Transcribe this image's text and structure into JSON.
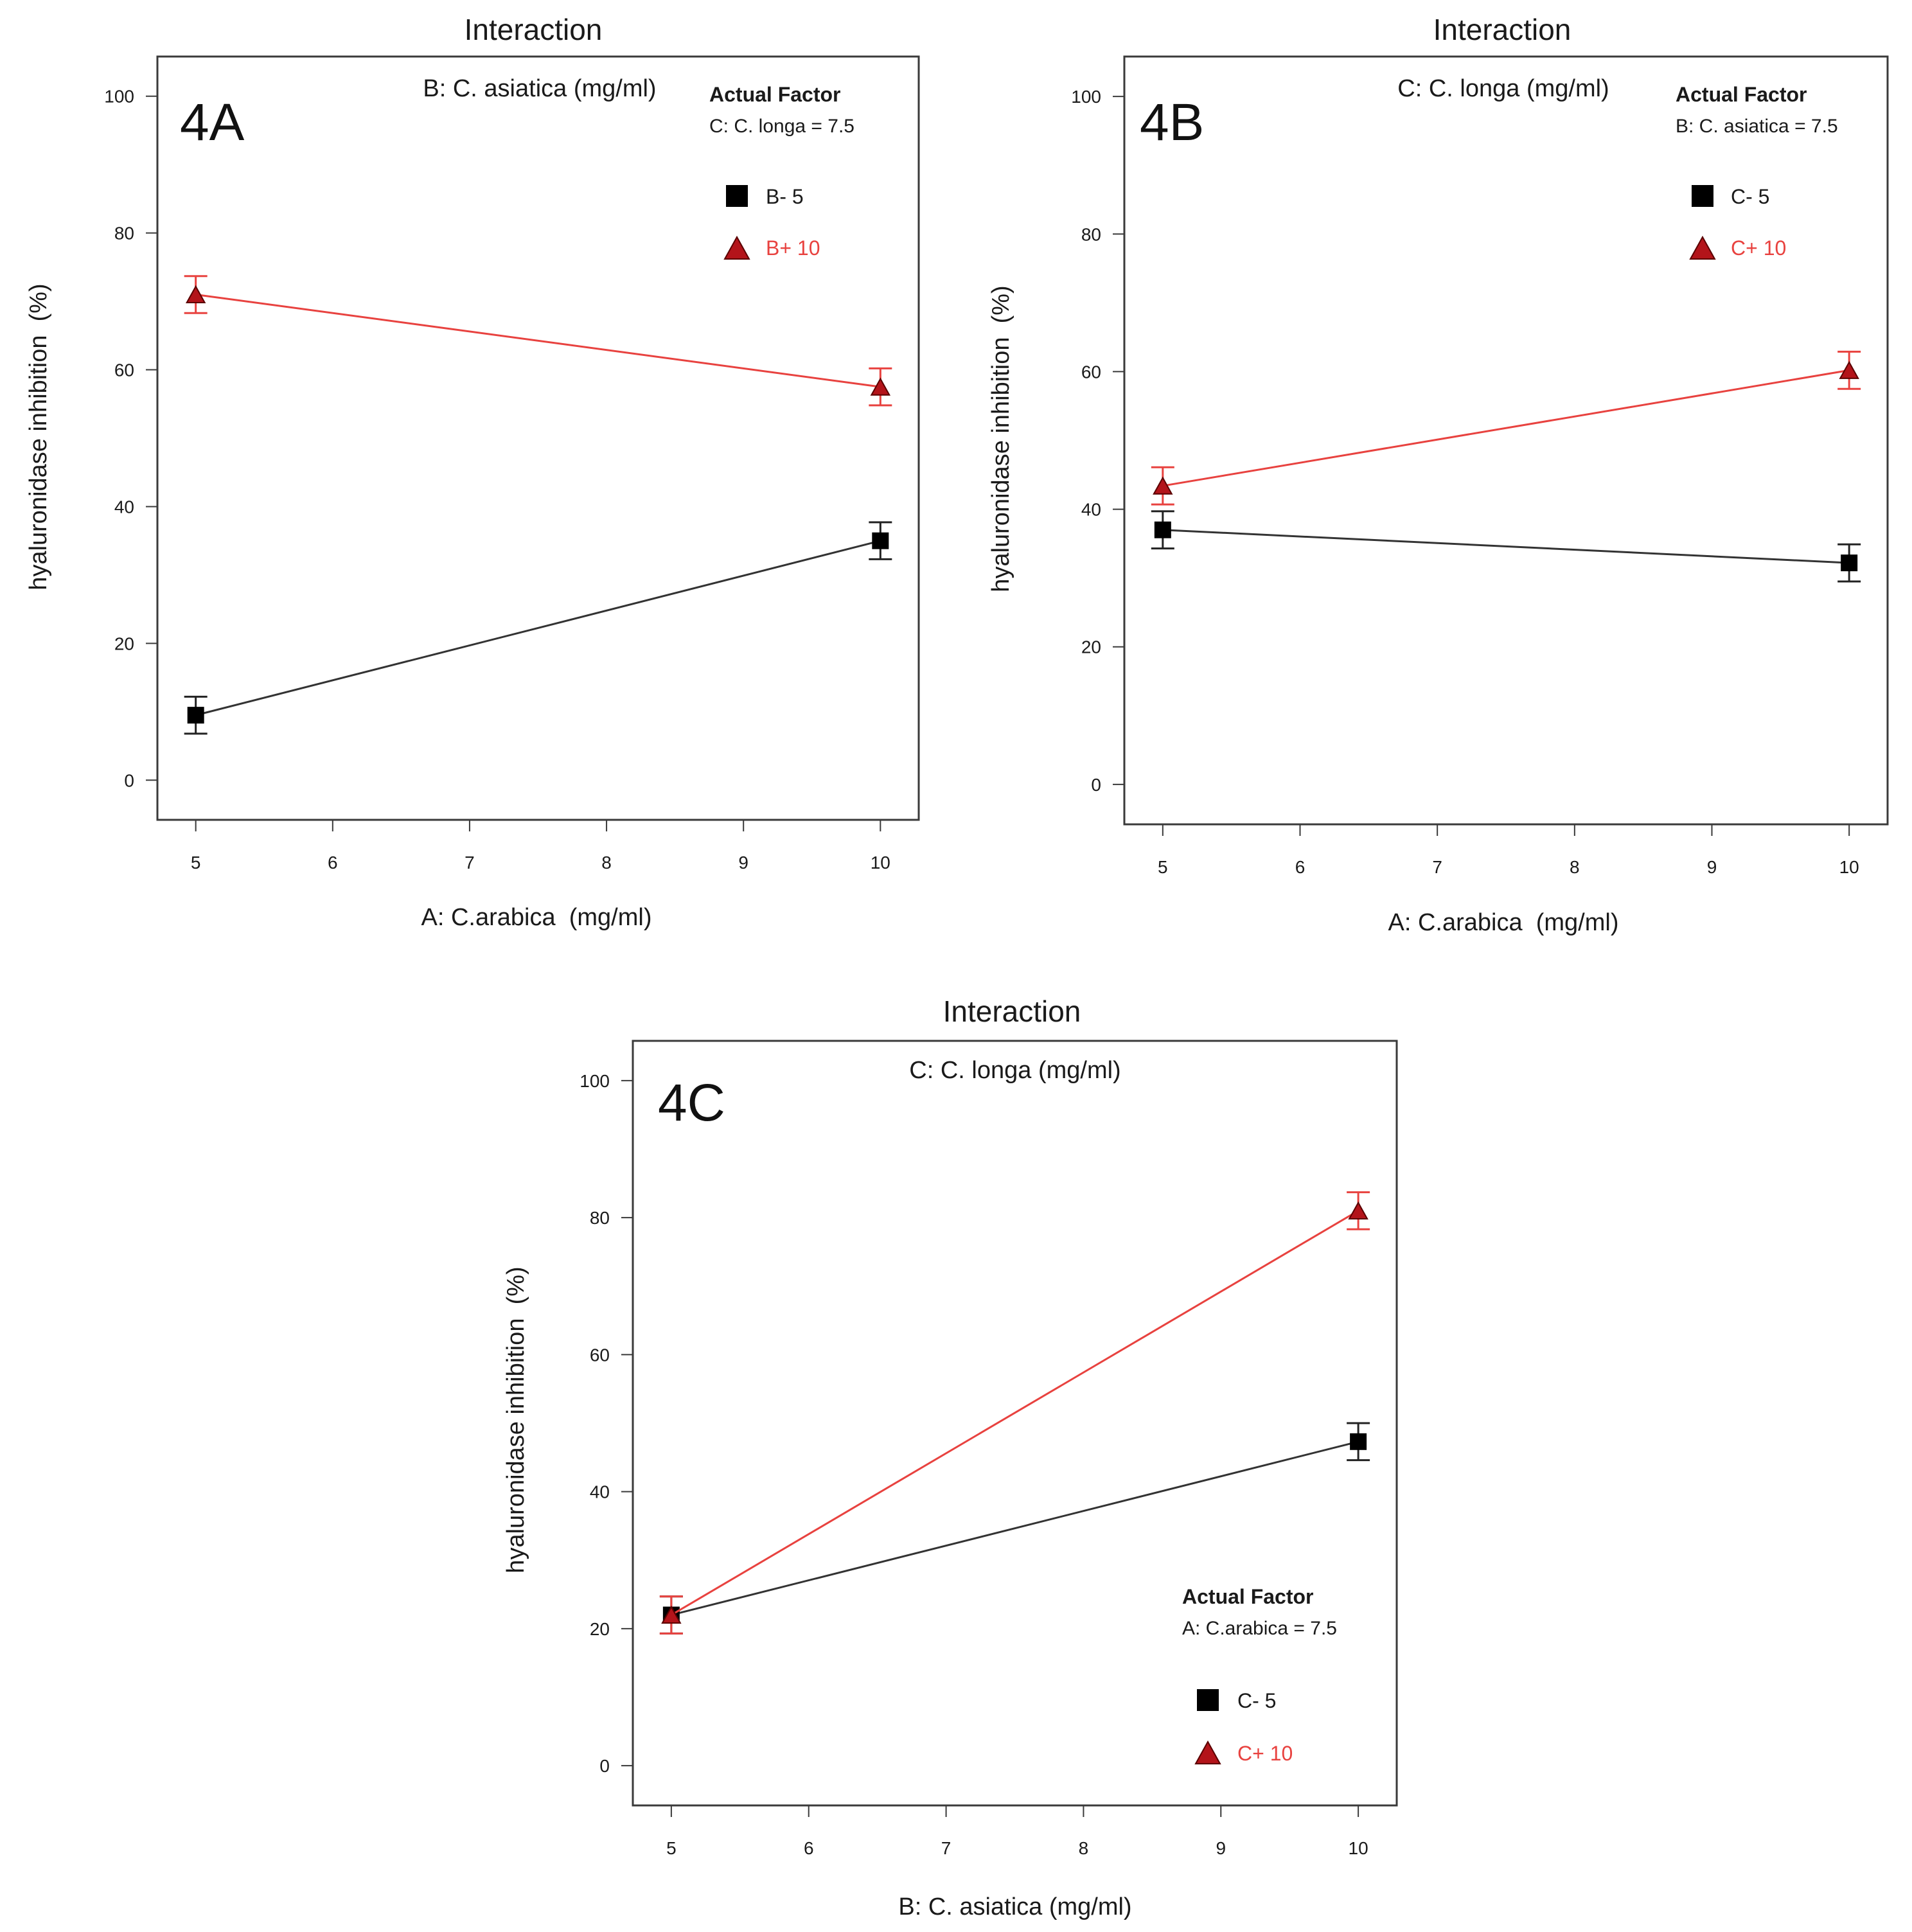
{
  "colors": {
    "black_series": "#000000",
    "red_series": "#e8423f",
    "red_marker": "#b3141a",
    "frame": "#3a3a3a",
    "text": "#1a1a1a"
  },
  "chart_data": [
    {
      "id": "4A",
      "type": "line",
      "title": "Interaction",
      "panel_label": "4A",
      "subtitle": "B: C. asiatica (mg/ml)",
      "xlabel": "A: C.arabica  (mg/ml)",
      "ylabel": "hyaluronidase inhibition  (%)",
      "xlim": [
        4.72,
        10.28
      ],
      "ylim": [
        -5.8,
        105.8
      ],
      "xticks": [
        5,
        6,
        7,
        8,
        9,
        10
      ],
      "yticks": [
        0,
        20,
        40,
        60,
        80,
        100
      ],
      "actual_factor_title": "Actual Factor",
      "actual_factor_value": "C: C. longa = 7.5",
      "legend_position": "top-right",
      "series": [
        {
          "name": "B- 5",
          "marker": "square",
          "color": "black",
          "x": [
            5,
            10
          ],
          "y": [
            9.5,
            35
          ],
          "err": [
            2.7,
            2.7
          ]
        },
        {
          "name": "B+ 10",
          "marker": "triangle",
          "color": "red",
          "x": [
            5,
            10
          ],
          "y": [
            71,
            57.5
          ],
          "err": [
            2.7,
            2.7
          ]
        }
      ]
    },
    {
      "id": "4B",
      "type": "line",
      "title": "Interaction",
      "panel_label": "4B",
      "subtitle": "C: C. longa (mg/ml)",
      "xlabel": "A: C.arabica  (mg/ml)",
      "ylabel": "hyaluronidase inhibition  (%)",
      "xlim": [
        4.72,
        10.28
      ],
      "ylim": [
        -5.8,
        105.8
      ],
      "xticks": [
        5,
        6,
        7,
        8,
        9,
        10
      ],
      "yticks": [
        0,
        20,
        40,
        60,
        80,
        100
      ],
      "actual_factor_title": "Actual Factor",
      "actual_factor_value": "B: C. asiatica = 7.5",
      "legend_position": "top-right",
      "series": [
        {
          "name": "C- 5",
          "marker": "square",
          "color": "black",
          "x": [
            5,
            10
          ],
          "y": [
            37,
            32.2
          ],
          "err": [
            2.7,
            2.7
          ]
        },
        {
          "name": "C+ 10",
          "marker": "triangle",
          "color": "red",
          "x": [
            5,
            10
          ],
          "y": [
            43.4,
            60.2
          ],
          "err": [
            2.7,
            2.7
          ]
        }
      ]
    },
    {
      "id": "4C",
      "type": "line",
      "title": "Interaction",
      "panel_label": "4C",
      "subtitle": "C: C. longa (mg/ml)",
      "xlabel": "B: C. asiatica (mg/ml)",
      "ylabel": "hyaluronidase inhibition  (%)",
      "xlim": [
        4.72,
        10.28
      ],
      "ylim": [
        -5.8,
        105.8
      ],
      "xticks": [
        5,
        6,
        7,
        8,
        9,
        10
      ],
      "yticks": [
        0,
        20,
        40,
        60,
        80,
        100
      ],
      "actual_factor_title": "Actual Factor",
      "actual_factor_value": "A: C.arabica = 7.5",
      "legend_position": "bottom-right",
      "series": [
        {
          "name": "C- 5",
          "marker": "square",
          "color": "black",
          "x": [
            5,
            10
          ],
          "y": [
            22,
            47.3
          ],
          "err": [
            2.7,
            2.7
          ]
        },
        {
          "name": "C+ 10",
          "marker": "triangle",
          "color": "red",
          "x": [
            5,
            10
          ],
          "y": [
            22,
            81
          ],
          "err": [
            2.7,
            2.7
          ]
        }
      ]
    }
  ]
}
